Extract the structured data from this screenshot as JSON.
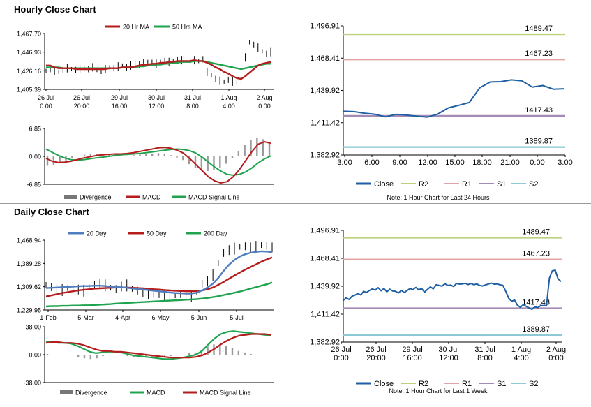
{
  "sections": {
    "hourly_title": "Hourly Close Chart",
    "daily_title": "Daily Close Chart"
  },
  "colors": {
    "red": "#b51d1d",
    "green": "#20a34f",
    "blue": "#4f7dc0",
    "navy": "#1f5fa3",
    "r2": "#bcd17c",
    "r1": "#e5a3a3",
    "s1": "#a48bb5",
    "s2": "#8ec9d6",
    "hist": "#777777"
  },
  "chart_data": [
    {
      "id": "hourly_price",
      "type": "line",
      "title": "Hourly Close Chart",
      "legend": [
        "20 Hr MA",
        "50 Hrs MA"
      ],
      "y_ticks": [
        "1,467.70",
        "1,446.93",
        "1,426.16",
        "1,405.39"
      ],
      "ylim": [
        1405.39,
        1467.7
      ],
      "x_ticks": [
        [
          "26 Jul",
          "0:00"
        ],
        [
          "26 Jul",
          "20:00"
        ],
        [
          "29 Jul",
          "16:00"
        ],
        [
          "30 Jul",
          "12:00"
        ],
        [
          "31 Jul",
          "8:00"
        ],
        [
          "1 Aug",
          "4:00"
        ],
        [
          "2 Aug",
          "0:00"
        ]
      ],
      "series": [
        {
          "name": "Close",
          "values": [
            1426,
            1428,
            1426,
            1425,
            1427,
            1429,
            1428,
            1427,
            1428,
            1429,
            1428,
            1430,
            1427,
            1426,
            1428,
            1430,
            1429,
            1431,
            1432,
            1430,
            1432,
            1434,
            1433,
            1435,
            1436,
            1435,
            1434,
            1436,
            1437,
            1436,
            1437,
            1438,
            1438,
            1436,
            1437,
            1438,
            1437,
            1439,
            1425,
            1421,
            1417,
            1415,
            1414,
            1416,
            1414,
            1413,
            1415,
            1441,
            1458,
            1455,
            1452,
            1448,
            1445,
            1447
          ]
        },
        {
          "name": "20 Hr MA",
          "values": [
            1432,
            1432,
            1430,
            1429,
            1429,
            1429,
            1429,
            1428,
            1428,
            1428,
            1428,
            1428,
            1428,
            1428,
            1428,
            1429,
            1429,
            1429,
            1430,
            1430,
            1430,
            1431,
            1432,
            1433,
            1433,
            1434,
            1434,
            1435,
            1435,
            1436,
            1436,
            1437,
            1437,
            1437,
            1437,
            1438,
            1437,
            1437,
            1435,
            1433,
            1430,
            1428,
            1425,
            1423,
            1420,
            1418,
            1417,
            1420,
            1424,
            1428,
            1432,
            1434,
            1435,
            1436
          ]
        },
        {
          "name": "50 Hrs MA",
          "values": [
            1430,
            1430,
            1430,
            1430,
            1429,
            1429,
            1429,
            1429,
            1429,
            1429,
            1429,
            1429,
            1429,
            1429,
            1429,
            1429,
            1429,
            1429,
            1430,
            1430,
            1430,
            1430,
            1431,
            1431,
            1432,
            1432,
            1433,
            1433,
            1434,
            1434,
            1435,
            1435,
            1436,
            1436,
            1436,
            1437,
            1437,
            1437,
            1436,
            1435,
            1434,
            1433,
            1432,
            1431,
            1430,
            1429,
            1428,
            1429,
            1430,
            1431,
            1432,
            1433,
            1434,
            1434
          ]
        }
      ]
    },
    {
      "id": "hourly_macd",
      "type": "line",
      "legend": [
        "Divergence",
        "MACD",
        "MACD Signal Line"
      ],
      "y_ticks": [
        "6.85",
        "0.00",
        "-6.85"
      ],
      "ylim": [
        -6.85,
        6.85
      ],
      "series": [
        {
          "name": "MACD",
          "values": [
            -0.5,
            -1.2,
            -1.5,
            -1.4,
            -1.2,
            -0.8,
            -0.4,
            -0.1,
            0.2,
            0.4,
            0.5,
            0.6,
            0.6,
            0.7,
            0.9,
            1.2,
            1.5,
            1.8,
            2.1,
            2.2,
            2.0,
            1.5,
            0.8,
            -0.5,
            -2.0,
            -3.5,
            -5.0,
            -6.0,
            -6.5,
            -6.2,
            -5.0,
            -3.2,
            -1.0,
            1.2,
            3.0,
            3.6,
            3.2
          ]
        },
        {
          "name": "MACD Signal Line",
          "values": [
            1.8,
            1.0,
            0.2,
            -0.4,
            -0.8,
            -0.9,
            -0.8,
            -0.6,
            -0.4,
            -0.2,
            0.0,
            0.2,
            0.4,
            0.5,
            0.6,
            0.7,
            0.9,
            1.1,
            1.3,
            1.5,
            1.7,
            1.8,
            1.7,
            1.4,
            0.8,
            -0.2,
            -1.4,
            -2.6,
            -3.6,
            -4.4,
            -4.6,
            -4.4,
            -3.8,
            -2.8,
            -1.6,
            -0.6,
            0.1
          ]
        },
        {
          "name": "Divergence",
          "values": [
            -2.3,
            -2.2,
            -1.7,
            -1.0,
            -0.4,
            0.1,
            0.4,
            0.5,
            0.6,
            0.6,
            0.5,
            0.4,
            0.2,
            0.2,
            0.3,
            0.5,
            0.6,
            0.7,
            0.8,
            0.7,
            0.3,
            -0.3,
            -0.9,
            -1.9,
            -2.8,
            -3.3,
            -3.6,
            -3.4,
            -2.9,
            -1.8,
            -0.4,
            1.2,
            2.8,
            4.0,
            4.6,
            4.2,
            3.1
          ]
        }
      ]
    },
    {
      "id": "hourly_levels",
      "type": "line",
      "y_ticks": [
        "1,496.91",
        "1,468.41",
        "1,439.92",
        "1,411.42",
        "1,382.92"
      ],
      "ylim": [
        1382.92,
        1496.91
      ],
      "x_ticks": [
        "3:00",
        "6:00",
        "9:00",
        "12:00",
        "15:00",
        "18:00",
        "21:00",
        "0:00",
        "3:00"
      ],
      "levels": [
        {
          "name": "R2",
          "value": 1489.47,
          "label": "1489.47"
        },
        {
          "name": "R1",
          "value": 1467.23,
          "label": "1467.23"
        },
        {
          "name": "S1",
          "value": 1417.43,
          "label": "1417.43"
        },
        {
          "name": "S2",
          "value": 1389.87,
          "label": "1389.87"
        }
      ],
      "series": [
        {
          "name": "Close",
          "values": [
            1421.5,
            1421.2,
            1419.8,
            1418.9,
            1416.6,
            1418.8,
            1418.2,
            1417.2,
            1416.4,
            1419.0,
            1424.5,
            1426.8,
            1429.2,
            1442.2,
            1447.4,
            1447.6,
            1449.2,
            1448.4,
            1442.8,
            1444.2,
            1441.0,
            1441.4
          ]
        }
      ],
      "legend": [
        "Close",
        "R2",
        "R1",
        "S1",
        "S2"
      ],
      "note": "Note: 1 Hour Chart for Last 24 Hours"
    },
    {
      "id": "daily_price",
      "type": "line",
      "title": "Daily Close Chart",
      "legend": [
        "20 Day",
        "50 Day",
        "200 Day"
      ],
      "y_ticks": [
        "1,468.94",
        "1,389.28",
        "1,309.62",
        "1,229.95"
      ],
      "ylim": [
        1229.95,
        1468.94
      ],
      "x_ticks": [
        "1-Feb",
        "5-Mar",
        "4-Apr",
        "6-May",
        "5-Jun",
        "5-Jul"
      ],
      "series": [
        {
          "name": "Close",
          "values": [
            1316,
            1308,
            1302,
            1298,
            1305,
            1310,
            1300,
            1296,
            1308,
            1316,
            1320,
            1314,
            1306,
            1302,
            1310,
            1314,
            1302,
            1296,
            1290,
            1286,
            1282,
            1284,
            1279,
            1276,
            1280,
            1284,
            1282,
            1278,
            1290,
            1320,
            1330,
            1350,
            1390,
            1425,
            1435,
            1440,
            1446,
            1448,
            1444,
            1446,
            1452,
            1450,
            1444
          ]
        },
        {
          "name": "20 Day",
          "values": [
            1305,
            1306,
            1307,
            1308,
            1309,
            1310,
            1311,
            1312,
            1312,
            1313,
            1313,
            1312,
            1310,
            1309,
            1308,
            1306,
            1304,
            1302,
            1300,
            1298,
            1296,
            1294,
            1292,
            1290,
            1288,
            1287,
            1286,
            1286,
            1289,
            1297,
            1307,
            1320,
            1340,
            1364,
            1385,
            1401,
            1413,
            1421,
            1426,
            1429,
            1431,
            1430,
            1428
          ]
        },
        {
          "name": "50 Day",
          "values": [
            1276,
            1280,
            1284,
            1288,
            1291,
            1294,
            1297,
            1299,
            1301,
            1303,
            1304,
            1305,
            1306,
            1307,
            1307,
            1307,
            1306,
            1305,
            1304,
            1303,
            1301,
            1300,
            1298,
            1297,
            1296,
            1295,
            1294,
            1294,
            1295,
            1297,
            1301,
            1307,
            1316,
            1326,
            1337,
            1348,
            1358,
            1368,
            1377,
            1386,
            1395,
            1403,
            1410
          ]
        },
        {
          "name": "200 Day",
          "values": [
            1242,
            1243,
            1243,
            1244,
            1244,
            1245,
            1245,
            1246,
            1246,
            1247,
            1248,
            1249,
            1250,
            1252,
            1253,
            1254,
            1255,
            1256,
            1257,
            1258,
            1259,
            1260,
            1261,
            1262,
            1263,
            1264,
            1265,
            1266,
            1267,
            1269,
            1271,
            1274,
            1277,
            1281,
            1285,
            1289,
            1293,
            1298,
            1303,
            1308,
            1313,
            1318,
            1324
          ]
        }
      ]
    },
    {
      "id": "daily_macd",
      "type": "line",
      "legend": [
        "Divergence",
        "MACD",
        "MACD Signal Line"
      ],
      "y_ticks": [
        "38.00",
        "0.00",
        "-38.00"
      ],
      "ylim": [
        -38.0,
        38.0
      ],
      "series": [
        {
          "name": "MACD",
          "values": [
            17,
            17,
            16,
            16,
            15,
            12,
            8,
            4,
            2,
            3,
            4,
            4,
            3,
            1,
            -1,
            -2,
            -3,
            -4,
            -5,
            -6,
            -6,
            -5,
            -4,
            -2,
            0,
            5,
            14,
            22,
            28,
            31,
            32,
            31,
            30,
            29,
            28,
            27,
            26
          ]
        },
        {
          "name": "MACD Signal Line",
          "values": [
            16,
            17,
            17,
            16,
            16,
            15,
            13,
            10,
            7,
            5,
            5,
            4,
            4,
            3,
            2,
            1,
            0,
            -1,
            -2,
            -3,
            -4,
            -4,
            -4,
            -4,
            -3,
            -1,
            3,
            8,
            14,
            19,
            23,
            26,
            27,
            28,
            28,
            28,
            27
          ]
        },
        {
          "name": "Divergence",
          "values": [
            1,
            0,
            -1,
            0,
            -1,
            -3,
            -5,
            -6,
            -5,
            -2,
            -1,
            0,
            -1,
            -2,
            -3,
            -3,
            -3,
            -3,
            -3,
            -3,
            -2,
            -1,
            0,
            2,
            3,
            6,
            11,
            14,
            14,
            12,
            9,
            5,
            3,
            1,
            0,
            -1,
            -1
          ]
        }
      ]
    },
    {
      "id": "daily_levels",
      "type": "line",
      "y_ticks": [
        "1,496.91",
        "1,468.41",
        "1,439.92",
        "1,411.42",
        "1,382.92"
      ],
      "ylim": [
        1382.92,
        1496.91
      ],
      "x_ticks": [
        [
          "26 Jul",
          "0:00"
        ],
        [
          "26 Jul",
          "20:00"
        ],
        [
          "29 Jul",
          "16:00"
        ],
        [
          "30 Jul",
          "12:00"
        ],
        [
          "31 Jul",
          "8:00"
        ],
        [
          "1 Aug",
          "4:00"
        ],
        [
          "2 Aug",
          "0:00"
        ]
      ],
      "levels": [
        {
          "name": "R2",
          "value": 1489.47,
          "label": "1489.47"
        },
        {
          "name": "R1",
          "value": 1467.23,
          "label": "1467.23"
        },
        {
          "name": "S1",
          "value": 1417.43,
          "label": "1417.43"
        },
        {
          "name": "S2",
          "value": 1389.87,
          "label": "1389.87"
        }
      ],
      "series": [
        {
          "name": "Close",
          "values": [
            1425.5,
            1428,
            1426.4,
            1429.7,
            1430.8,
            1432.5,
            1431,
            1434.7,
            1433.5,
            1435.6,
            1437.2,
            1436,
            1438.5,
            1435.3,
            1437.6,
            1434.2,
            1436.9,
            1435.1,
            1434.8,
            1433,
            1435.8,
            1433.4,
            1435.6,
            1437.6,
            1436.4,
            1438.8,
            1436.2,
            1437.7,
            1433.8,
            1436.7,
            1439.2,
            1437.3,
            1441.4,
            1440.8,
            1440,
            1442.4,
            1440.7,
            1441.1,
            1439.6,
            1442.7,
            1442.1,
            1442.3,
            1442.9,
            1441.6,
            1442.6,
            1441.5,
            1442.3,
            1440.7,
            1440.2,
            1441.3,
            1442.2,
            1443.1,
            1442,
            1442.3,
            1441.4,
            1440.8,
            1434.4,
            1427.6,
            1424.5,
            1425.8,
            1420.5,
            1418.4,
            1421.2,
            1419.4,
            1417.8,
            1416.3,
            1418.9,
            1418.1,
            1420.1,
            1420.1,
            1420.2,
            1448.3,
            1455.6,
            1456.3,
            1447.5,
            1444.7
          ]
        }
      ],
      "legend": [
        "Close",
        "R2",
        "R1",
        "S1",
        "S2"
      ],
      "note": "Note: 1 Hour Chart for Last 1 Week"
    }
  ]
}
